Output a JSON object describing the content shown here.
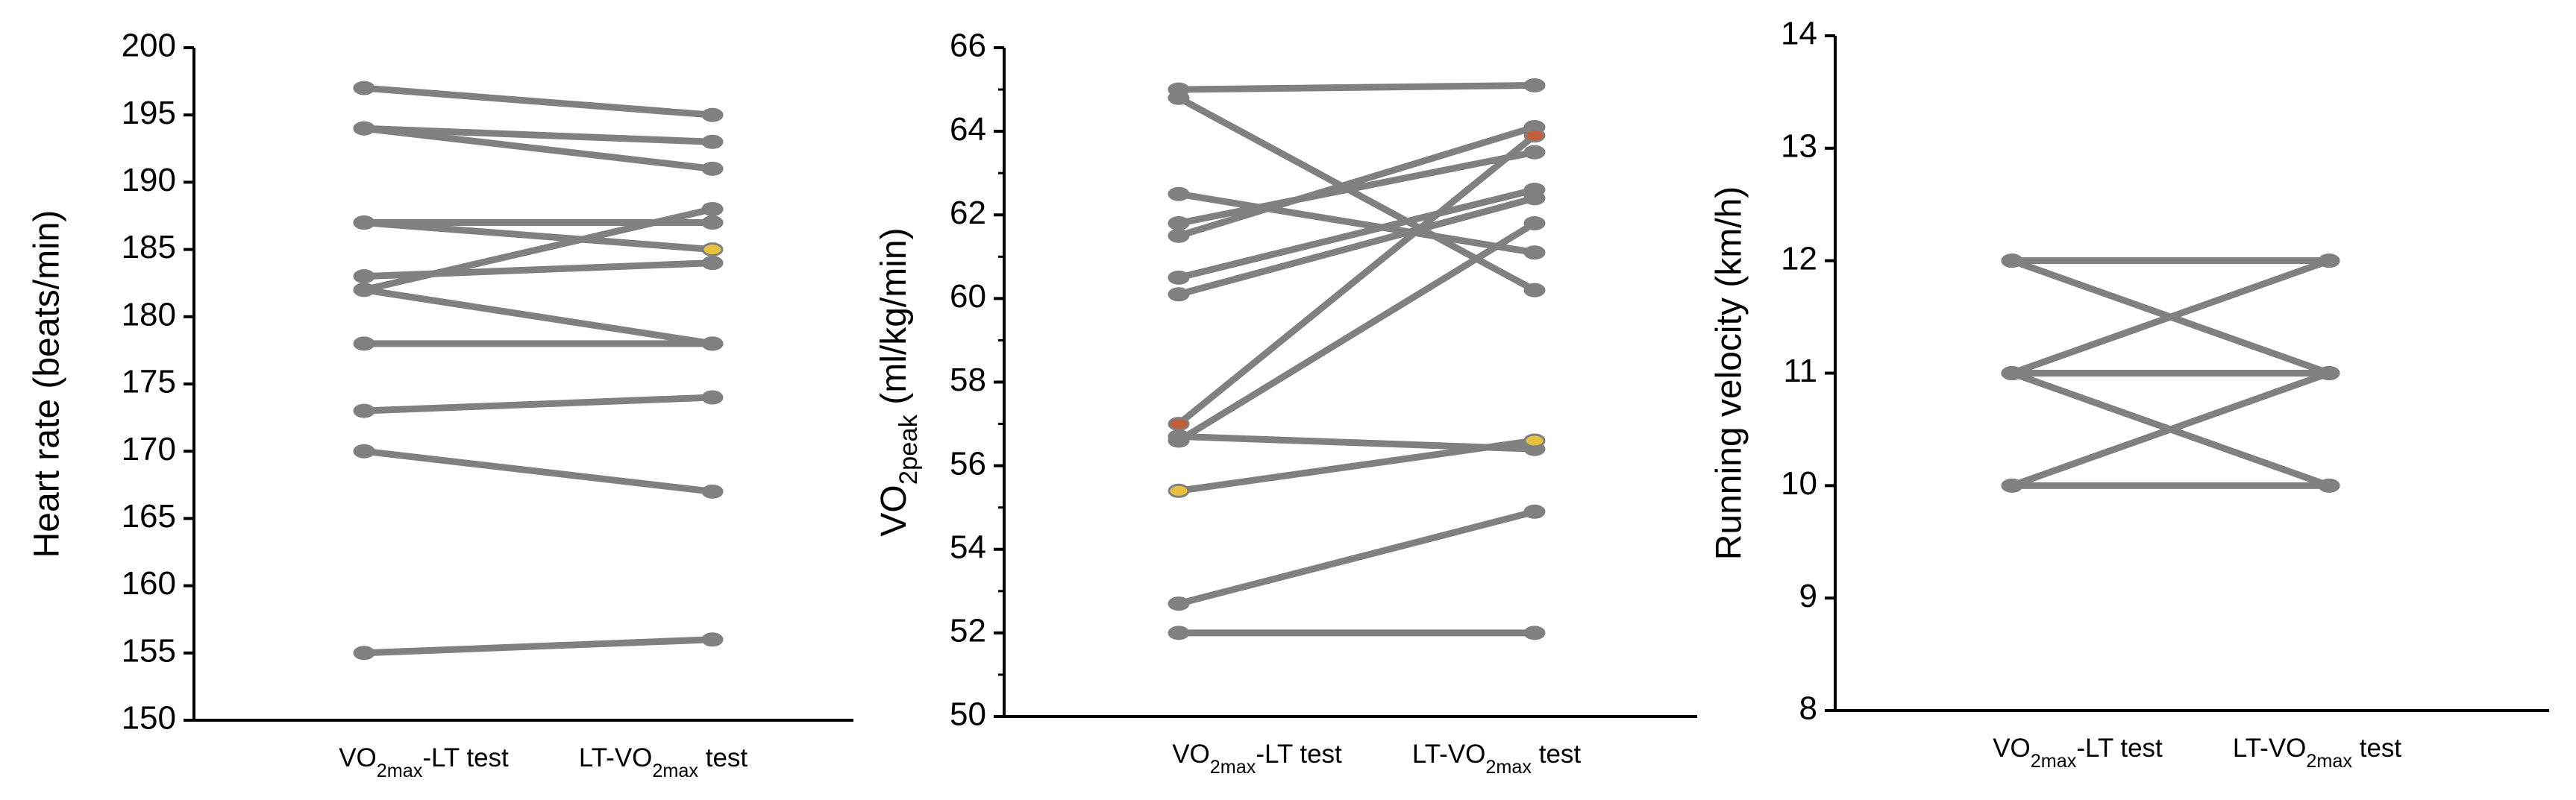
{
  "chart_data": [
    {
      "type": "paired-line",
      "y_label": "Heart rate (beats/min)",
      "categories": [
        "VO2max-LT test",
        "LT-VO2max test"
      ],
      "ylim": [
        150,
        200
      ],
      "yticks": [
        150,
        155,
        160,
        165,
        170,
        175,
        180,
        185,
        190,
        195,
        200
      ],
      "series": [
        {
          "color": "#808080",
          "values": [
            197,
            195
          ]
        },
        {
          "color": "#808080",
          "values": [
            194,
            193
          ]
        },
        {
          "color": "#808080",
          "values": [
            194,
            191
          ]
        },
        {
          "color": "#808080",
          "values": [
            187,
            187
          ]
        },
        {
          "color": "#808080",
          "values": [
            187,
            185
          ],
          "marker_colors": [
            "#808080",
            "#e8c040"
          ]
        },
        {
          "color": "#808080",
          "values": [
            183,
            184
          ]
        },
        {
          "color": "#808080",
          "values": [
            182,
            188
          ]
        },
        {
          "color": "#808080",
          "values": [
            182,
            178
          ]
        },
        {
          "color": "#808080",
          "values": [
            178,
            178
          ]
        },
        {
          "color": "#808080",
          "values": [
            173,
            174
          ]
        },
        {
          "color": "#808080",
          "values": [
            170,
            167
          ]
        },
        {
          "color": "#808080",
          "values": [
            155,
            156
          ]
        }
      ]
    },
    {
      "type": "paired-line",
      "y_label": "VO2peak (ml/kg/min)",
      "categories": [
        "VO2max-LT test",
        "LT-VO2max test"
      ],
      "ylim": [
        50,
        66
      ],
      "yticks": [
        50,
        52,
        54,
        56,
        58,
        60,
        62,
        64,
        66
      ],
      "yticks_minor": [
        51,
        53,
        55,
        57,
        59,
        61,
        63,
        65
      ],
      "series": [
        {
          "color": "#808080",
          "values": [
            65.0,
            65.1
          ]
        },
        {
          "color": "#808080",
          "values": [
            64.8,
            60.2
          ]
        },
        {
          "color": "#808080",
          "values": [
            62.5,
            61.1
          ]
        },
        {
          "color": "#808080",
          "values": [
            61.8,
            63.5
          ]
        },
        {
          "color": "#808080",
          "values": [
            61.5,
            64.1
          ]
        },
        {
          "color": "#808080",
          "values": [
            60.5,
            62.6
          ]
        },
        {
          "color": "#808080",
          "values": [
            60.1,
            62.4
          ]
        },
        {
          "color": "#808080",
          "values": [
            57.0,
            63.9
          ],
          "marker_colors": [
            "#c0603a",
            "#c0603a"
          ]
        },
        {
          "color": "#808080",
          "values": [
            56.7,
            56.4
          ]
        },
        {
          "color": "#808080",
          "values": [
            56.6,
            61.8
          ]
        },
        {
          "color": "#808080",
          "values": [
            55.4,
            56.6
          ],
          "marker_colors": [
            "#e8c040",
            "#e8c040"
          ]
        },
        {
          "color": "#808080",
          "values": [
            52.7,
            54.9
          ]
        },
        {
          "color": "#808080",
          "values": [
            52.0,
            52.0
          ]
        }
      ]
    },
    {
      "type": "paired-line",
      "y_label": "Running velocity (km/h)",
      "categories": [
        "VO2max-LT test",
        "LT-VO2max test"
      ],
      "ylim": [
        8,
        14
      ],
      "yticks": [
        8,
        9,
        10,
        11,
        12,
        13,
        14
      ],
      "series": [
        {
          "color": "#808080",
          "values": [
            12,
            12
          ],
          "marker_colors": [
            "#808080",
            "#c0603a"
          ]
        },
        {
          "color": "#808080",
          "values": [
            12,
            11
          ]
        },
        {
          "color": "#808080",
          "values": [
            11,
            12
          ]
        },
        {
          "color": "#808080",
          "values": [
            11,
            11
          ]
        },
        {
          "color": "#808080",
          "values": [
            11,
            10
          ]
        },
        {
          "color": "#808080",
          "values": [
            10,
            10
          ]
        },
        {
          "color": "#808080",
          "values": [
            10,
            11
          ]
        }
      ]
    }
  ]
}
